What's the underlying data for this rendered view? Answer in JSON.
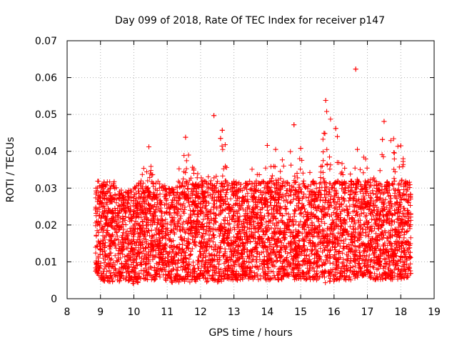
{
  "chart_data": {
    "type": "scatter",
    "title": "Day 099 of 2018, Rate Of TEC Index for receiver p147",
    "xlabel": "GPS time / hours",
    "ylabel": "ROTI / TECUs",
    "xlim": [
      8,
      19
    ],
    "ylim": [
      0,
      0.07
    ],
    "x_ticks": [
      8,
      9,
      10,
      11,
      12,
      13,
      14,
      15,
      16,
      17,
      18,
      19
    ],
    "x_tick_labels": [
      "8",
      "9",
      "10",
      "11",
      "12",
      "13",
      "14",
      "15",
      "16",
      "17",
      "18",
      "19"
    ],
    "y_ticks": [
      0,
      0.01,
      0.02,
      0.03,
      0.04,
      0.05,
      0.06,
      0.07
    ],
    "y_tick_labels": [
      "0",
      "0.01",
      "0.02",
      "0.03",
      "0.04",
      "0.05",
      "0.06",
      "0.07"
    ],
    "grid": true,
    "marker": "+",
    "series_color": "#ff0000",
    "x_range_data": [
      8.85,
      18.3
    ],
    "bulk_range": [
      0.004,
      0.032
    ],
    "envelope": {
      "x": [
        8.85,
        9.0,
        9.3,
        9.7,
        10.0,
        10.4,
        10.8,
        11.2,
        11.5,
        12.0,
        12.4,
        12.7,
        13.0,
        13.5,
        14.0,
        14.3,
        14.7,
        15.0,
        15.5,
        15.8,
        16.1,
        16.5,
        16.9,
        17.3,
        17.6,
        18.0,
        18.3
      ],
      "upper": [
        0.034,
        0.031,
        0.033,
        0.029,
        0.03,
        0.04,
        0.031,
        0.03,
        0.042,
        0.033,
        0.034,
        0.045,
        0.032,
        0.035,
        0.038,
        0.037,
        0.045,
        0.039,
        0.033,
        0.052,
        0.044,
        0.034,
        0.039,
        0.033,
        0.047,
        0.04,
        0.032
      ],
      "lower": [
        0.007,
        0.005,
        0.004,
        0.005,
        0.004,
        0.005,
        0.005,
        0.004,
        0.004,
        0.005,
        0.004,
        0.005,
        0.005,
        0.005,
        0.005,
        0.005,
        0.005,
        0.005,
        0.005,
        0.004,
        0.005,
        0.005,
        0.006,
        0.005,
        0.005,
        0.005,
        0.006
      ]
    },
    "outliers": [
      {
        "x": 16.65,
        "y": 0.0623
      },
      {
        "x": 15.75,
        "y": 0.0538
      },
      {
        "x": 15.78,
        "y": 0.0508
      },
      {
        "x": 12.4,
        "y": 0.0497
      },
      {
        "x": 17.5,
        "y": 0.0481
      },
      {
        "x": 14.8,
        "y": 0.0472
      },
      {
        "x": 16.05,
        "y": 0.0462
      },
      {
        "x": 12.65,
        "y": 0.0457
      },
      {
        "x": 12.6,
        "y": 0.0435
      },
      {
        "x": 11.55,
        "y": 0.0438
      },
      {
        "x": 16.1,
        "y": 0.044
      },
      {
        "x": 17.45,
        "y": 0.0432
      },
      {
        "x": 14.0,
        "y": 0.0416
      },
      {
        "x": 10.45,
        "y": 0.0412
      },
      {
        "x": 18.0,
        "y": 0.0415
      },
      {
        "x": 16.7,
        "y": 0.0405
      },
      {
        "x": 15.0,
        "y": 0.0408
      },
      {
        "x": 14.25,
        "y": 0.0405
      }
    ]
  }
}
